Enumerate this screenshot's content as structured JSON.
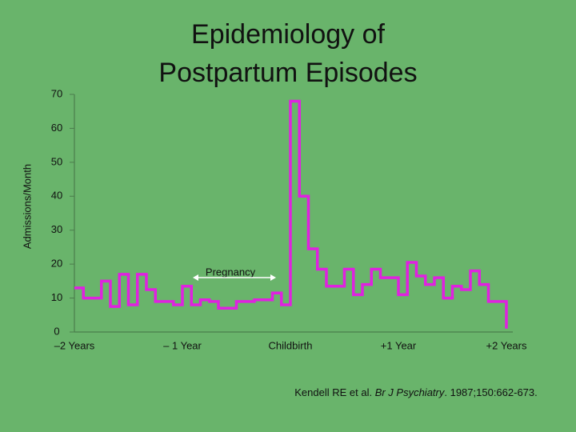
{
  "chart_data": {
    "type": "step",
    "title": [
      "Epidemiology of",
      "Postpartum Episodes"
    ],
    "y_label": "Admissions/Month",
    "annotation": "Pregnancy",
    "citation": {
      "authors": "Kendell RE et al. ",
      "journal": "Br J Psychiatry",
      "details": ". 1987;150:662-673."
    },
    "x": [
      -24,
      -23,
      -22,
      -21,
      -20,
      -19,
      -18,
      -17,
      -16,
      -15,
      -14,
      -13,
      -12,
      -11,
      -10,
      -9,
      -8,
      -7,
      -6,
      -5,
      -4,
      -3,
      -2,
      -1,
      0,
      1,
      2,
      3,
      4,
      5,
      6,
      7,
      8,
      9,
      10,
      11,
      12,
      13,
      14,
      15,
      16,
      17,
      18,
      19,
      20,
      21,
      22,
      23,
      24
    ],
    "series": [
      {
        "color": "#e021e0",
        "values": [
          13,
          10,
          10,
          15,
          7.5,
          17,
          8,
          17,
          12.5,
          9,
          9,
          8,
          13.5,
          8,
          9.5,
          9,
          7,
          7,
          9,
          9,
          9.5,
          9.5,
          11.5,
          8,
          68,
          40,
          24.5,
          18.5,
          13.5,
          13.5,
          18.5,
          11,
          14,
          18.5,
          16,
          16,
          11,
          20.5,
          16.5,
          14,
          16,
          10,
          13.5,
          12.5,
          18,
          14,
          9,
          9,
          1
        ]
      }
    ],
    "xlim": [
      -24,
      24
    ],
    "xticks": [
      {
        "value": -24,
        "label": "–2 Years"
      },
      {
        "value": -12,
        "label": "– 1 Year"
      },
      {
        "value": 0,
        "label": "Childbirth"
      },
      {
        "value": 12,
        "label": "+1 Year"
      },
      {
        "value": 24,
        "label": "+2 Years"
      }
    ],
    "ylim": [
      0,
      70
    ],
    "yticks": [
      0,
      10,
      20,
      30,
      40,
      50,
      60,
      70
    ]
  }
}
